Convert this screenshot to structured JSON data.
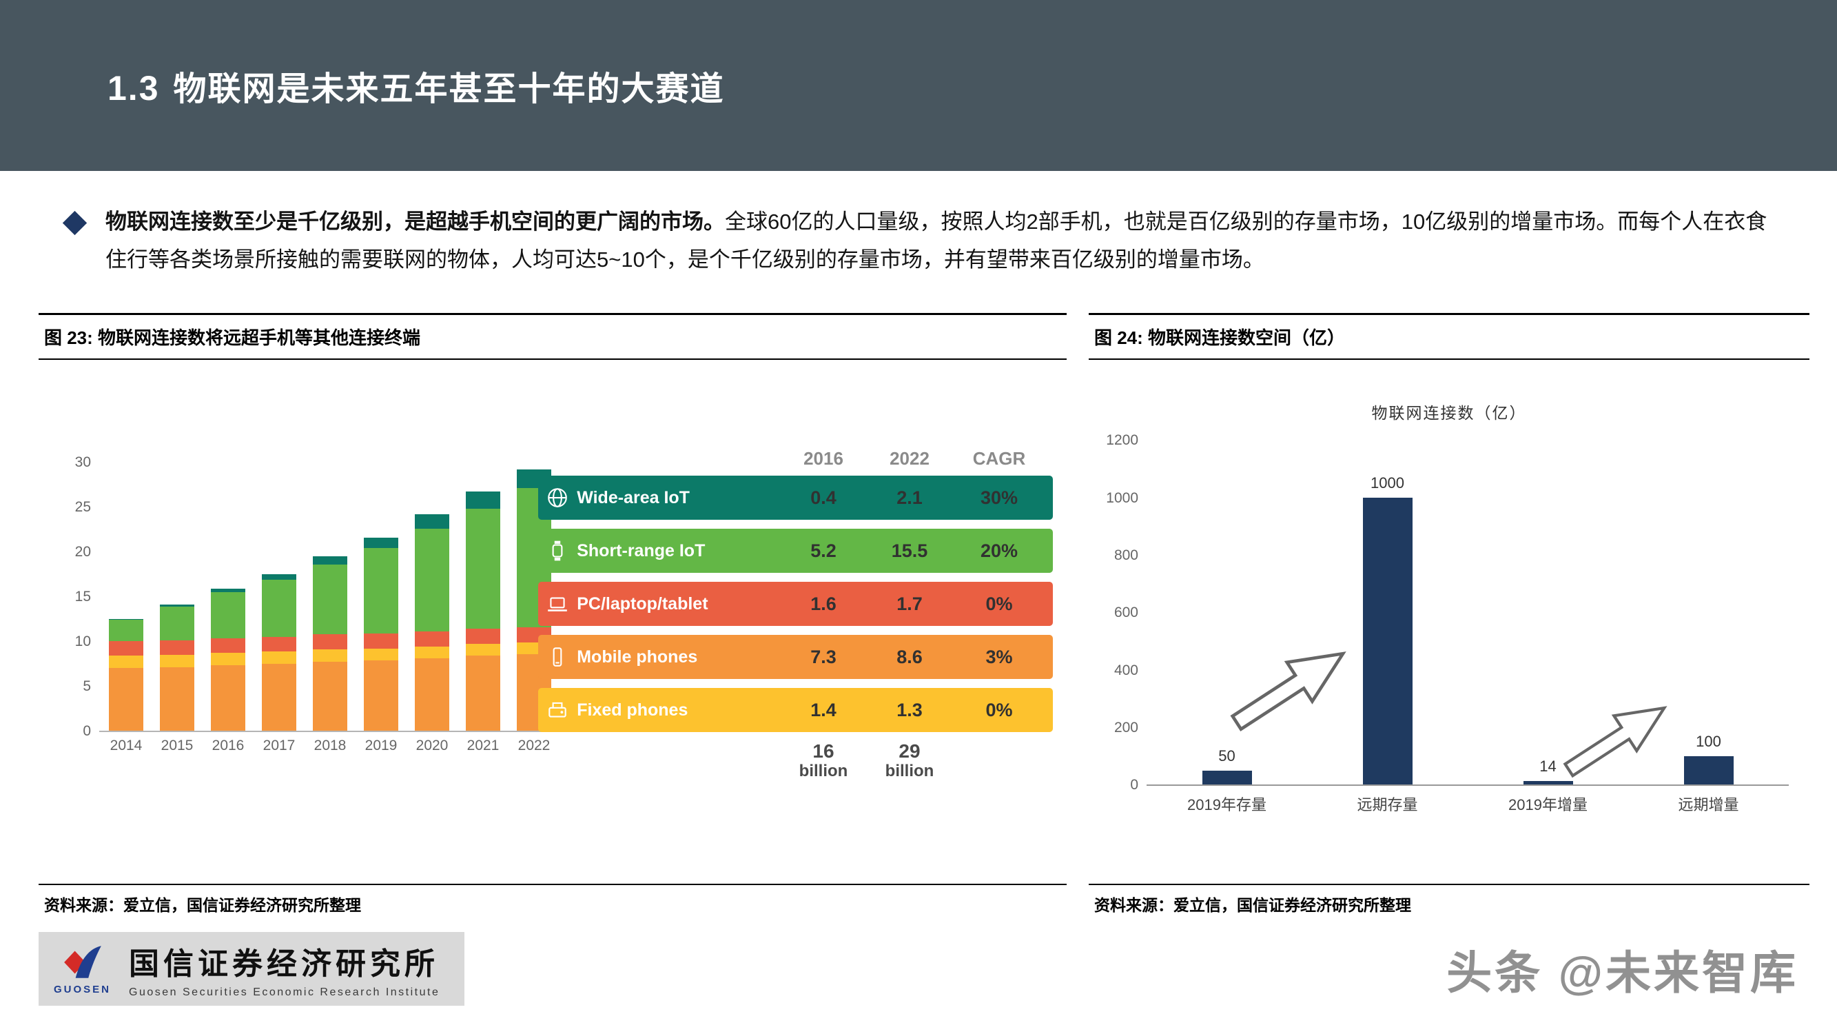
{
  "header": {
    "section": "1.3",
    "title": "物联网是未来五年甚至十年的大赛道"
  },
  "bullet": {
    "bold": "物联网连接数至少是千亿级别，是超越手机空间的更广阔的市场。",
    "rest": "全球60亿的人口量级，按照人均2部手机，也就是百亿级别的存量市场，10亿级别的增量市场。而每个人在衣食住行等各类场景所接触的需要联网的物体，人均可达5~10个，是个千亿级别的存量市场，并有望带来百亿级别的增量市场。"
  },
  "figures": {
    "left": {
      "caption": "图 23:  物联网连接数将远超手机等其他连接终端",
      "source": "资料来源：爱立信，国信证券经济研究所整理"
    },
    "right": {
      "caption": "图 24:  物联网连接数空间（亿）",
      "source": "资料来源：爱立信，国信证券经济研究所整理"
    }
  },
  "chart_data": [
    {
      "type": "bar",
      "stacked": true,
      "title": "物联网连接数将远超手机等其他连接终端",
      "unit": "billion",
      "categories": [
        "2014",
        "2015",
        "2016",
        "2017",
        "2018",
        "2019",
        "2020",
        "2021",
        "2022"
      ],
      "series": [
        {
          "name": "Mobile phones",
          "color": "#F5953B",
          "values": [
            7.0,
            7.1,
            7.3,
            7.5,
            7.7,
            7.9,
            8.1,
            8.4,
            8.6
          ]
        },
        {
          "name": "Fixed phones",
          "color": "#FDC22E",
          "values": [
            1.4,
            1.4,
            1.4,
            1.4,
            1.4,
            1.3,
            1.3,
            1.3,
            1.3
          ]
        },
        {
          "name": "PC/laptop/tablet",
          "color": "#EA5F42",
          "values": [
            1.6,
            1.6,
            1.6,
            1.6,
            1.7,
            1.7,
            1.7,
            1.7,
            1.7
          ]
        },
        {
          "name": "Short-range IoT",
          "color": "#63B746",
          "values": [
            2.4,
            3.8,
            5.2,
            6.4,
            7.8,
            9.5,
            11.5,
            13.4,
            15.5
          ]
        },
        {
          "name": "Wide-area IoT",
          "color": "#0C7A68",
          "values": [
            0.1,
            0.2,
            0.4,
            0.6,
            0.9,
            1.2,
            1.6,
            1.9,
            2.1
          ]
        }
      ],
      "ylim": [
        0,
        30
      ],
      "yticks": [
        0,
        5,
        10,
        15,
        20,
        25,
        30
      ],
      "legend_table": {
        "columns": [
          "2016",
          "2022",
          "CAGR"
        ],
        "rows": [
          {
            "icon": "globe-icon",
            "label": "Wide-area IoT",
            "v2016": "0.4",
            "v2022": "2.1",
            "cagr": "30%",
            "color": "#0C7A68"
          },
          {
            "icon": "watch-icon",
            "label": "Short-range IoT",
            "v2016": "5.2",
            "v2022": "15.5",
            "cagr": "20%",
            "color": "#63B746"
          },
          {
            "icon": "laptop-icon",
            "label": "PC/laptop/tablet",
            "v2016": "1.6",
            "v2022": "1.7",
            "cagr": "0%",
            "color": "#EA5F42"
          },
          {
            "icon": "phone-icon",
            "label": "Mobile phones",
            "v2016": "7.3",
            "v2022": "8.6",
            "cagr": "3%",
            "color": "#F5953B"
          },
          {
            "icon": "fax-icon",
            "label": "Fixed phones",
            "v2016": "1.4",
            "v2022": "1.3",
            "cagr": "0%",
            "color": "#FDC22E"
          }
        ],
        "totals": [
          {
            "value": "16",
            "unit": "billion"
          },
          {
            "value": "29",
            "unit": "billion"
          }
        ]
      }
    },
    {
      "type": "bar",
      "title": "物联网连接数（亿）",
      "categories": [
        "2019年存量",
        "远期存量",
        "2019年增量",
        "远期增量"
      ],
      "values": [
        50,
        1000,
        14,
        100
      ],
      "data_labels": [
        "50",
        "1000",
        "14",
        "100"
      ],
      "ylim": [
        0,
        1200
      ],
      "yticks": [
        0,
        200,
        400,
        600,
        800,
        1000,
        1200
      ],
      "bar_color": "#1F3A60"
    }
  ],
  "footer": {
    "logo_mark": "GUOSEN",
    "logo_cn": "国信证券经济研究所",
    "logo_en": "Guosen Securities Economic Research Institute",
    "watermark": "头条 @未来智库"
  }
}
